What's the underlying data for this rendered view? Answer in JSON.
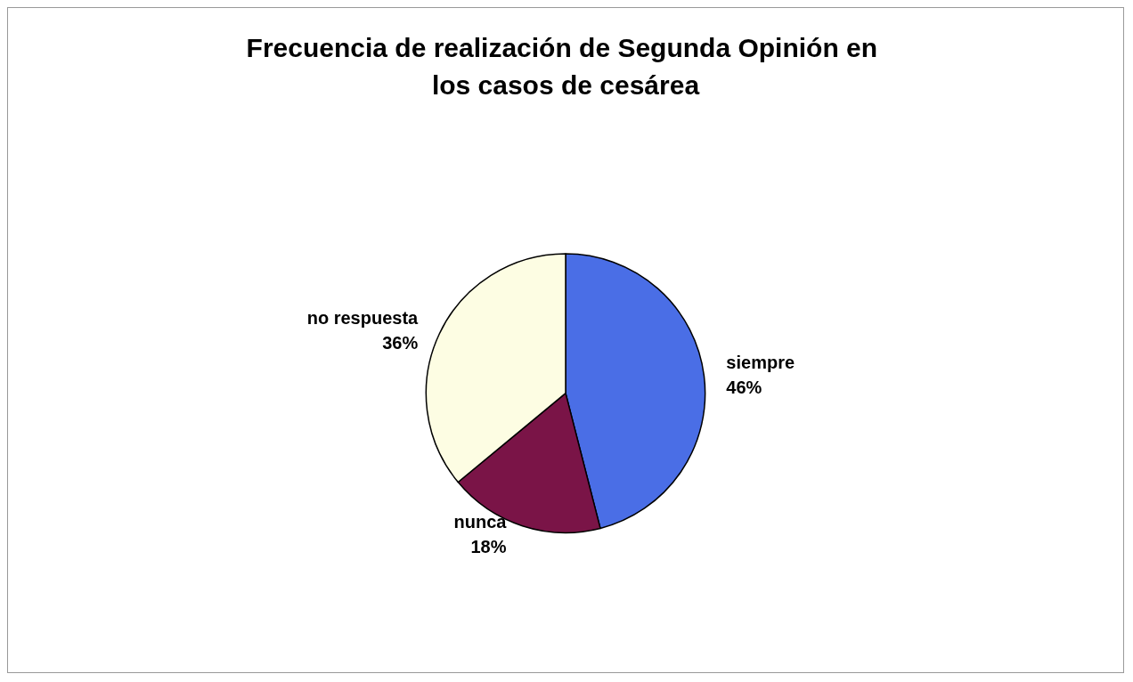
{
  "chart_data": {
    "type": "pie",
    "title": "Frecuencia de realización de Segunda Opinión en los casos de cesárea",
    "categories": [
      "siempre",
      "nunca",
      "no respuesta"
    ],
    "values": [
      46,
      18,
      36
    ],
    "value_labels": [
      "46%",
      "18%",
      "36%"
    ],
    "colors": [
      "#4a6ee6",
      "#7a1447",
      "#fdfde3"
    ],
    "legend": false
  }
}
